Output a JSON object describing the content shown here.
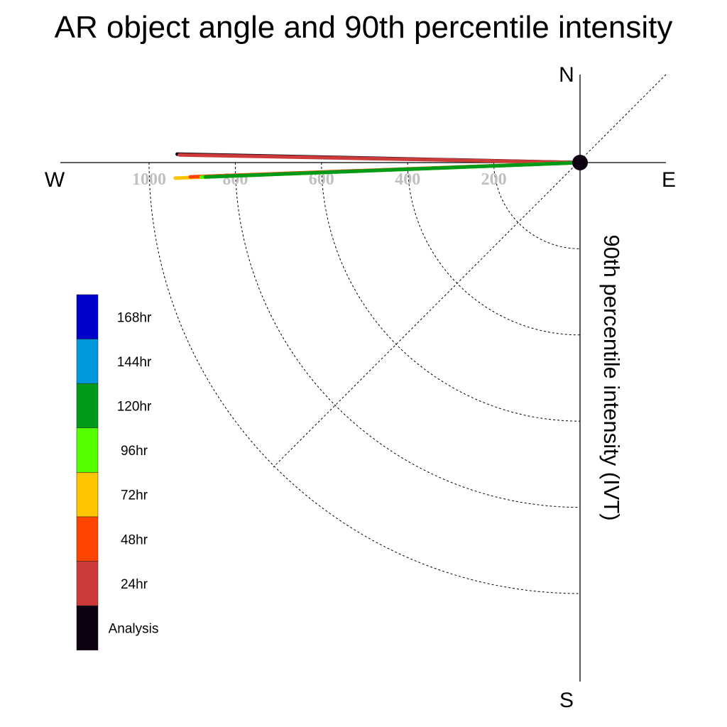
{
  "title": "AR object angle and 90th percentile intensity",
  "chart_data": {
    "type": "line",
    "title": "AR object angle and 90th percentile intensity",
    "ylabel": "90th percentile intensity (IVT)",
    "compass": {
      "north": "N",
      "south": "S",
      "east": "E",
      "west": "W"
    },
    "radial_ticks": [
      "200",
      "400",
      "600",
      "800",
      "1000"
    ],
    "radial_max": 1000,
    "grid": true,
    "legend_placement": "left",
    "legend": [
      {
        "label": "168hr",
        "color": "#0000cc"
      },
      {
        "label": "144hr",
        "color": "#0099dd"
      },
      {
        "label": "120hr",
        "color": "#009a1a"
      },
      {
        "label": "96hr",
        "color": "#55ff00"
      },
      {
        "label": "72hr",
        "color": "#ffc400"
      },
      {
        "label": "48hr",
        "color": "#ff4400"
      },
      {
        "label": "24hr",
        "color": "#cc3a3a"
      },
      {
        "label": "Analysis",
        "color": "#0d0010"
      }
    ],
    "series": [
      {
        "name": "Analysis",
        "color": "#0d0010",
        "intensity": 935,
        "angle_deg": 178.8
      },
      {
        "name": "24hr",
        "color": "#cc3a3a",
        "intensity": 930,
        "angle_deg": 178.9
      },
      {
        "name": "72hr",
        "color": "#ffc400",
        "intensity": 940,
        "angle_deg": -177.8
      },
      {
        "name": "48hr",
        "color": "#ff4400",
        "intensity": 905,
        "angle_deg": -177.9
      },
      {
        "name": "96hr",
        "color": "#55ff00",
        "intensity": 880,
        "angle_deg": -177.8
      },
      {
        "name": "120hr",
        "color": "#009a1a",
        "intensity": 870,
        "angle_deg": -177.8
      }
    ]
  }
}
